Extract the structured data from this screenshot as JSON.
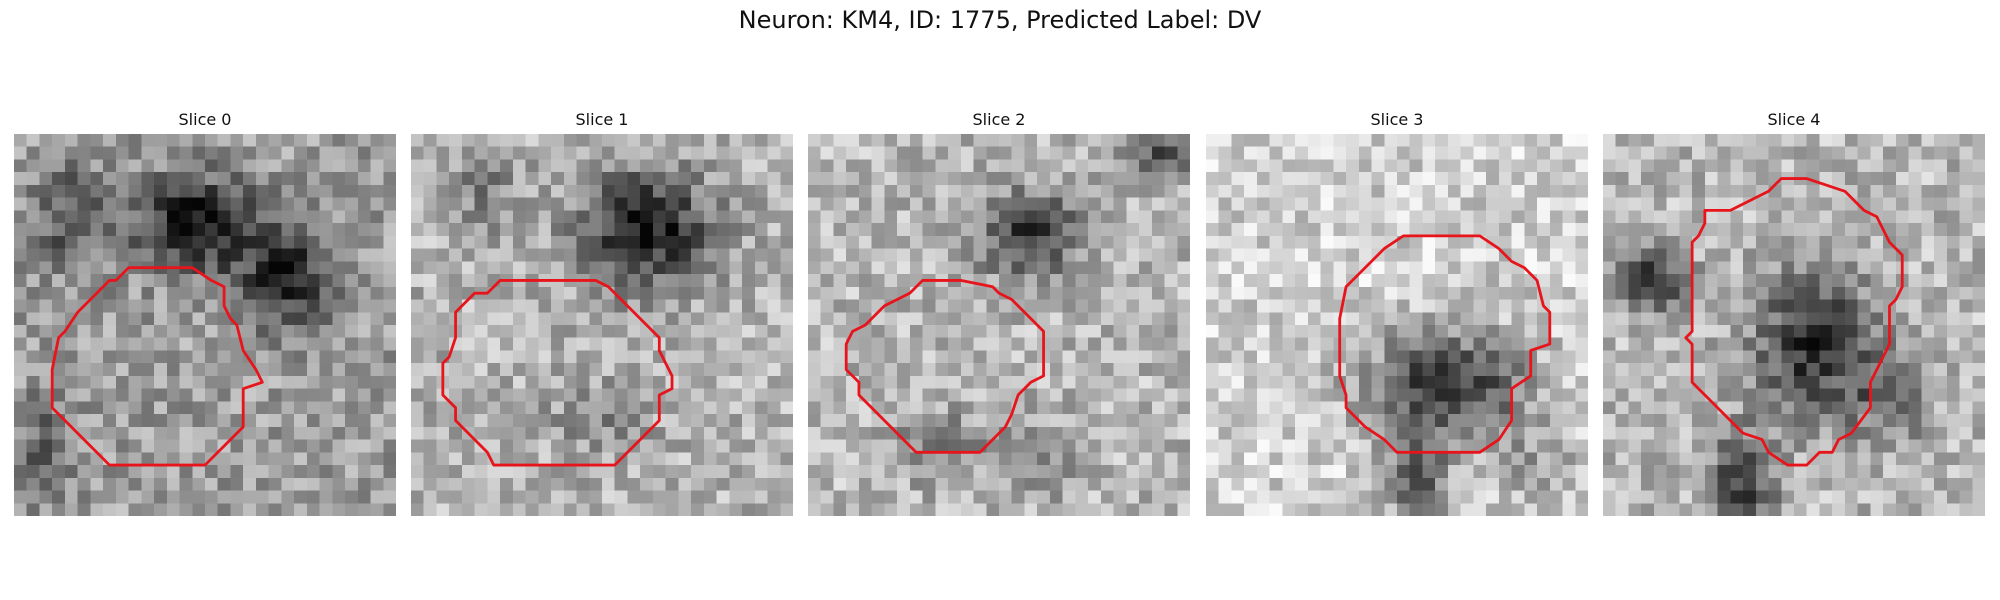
{
  "figure": {
    "title": "Neuron: KM4, ID: 1775, Predicted Label: DV",
    "contour_color": "#e8141c"
  },
  "slices": [
    {
      "title": "Slice 0"
    },
    {
      "title": "Slice 1"
    },
    {
      "title": "Slice 2"
    },
    {
      "title": "Slice 3"
    },
    {
      "title": "Slice 4"
    }
  ]
}
